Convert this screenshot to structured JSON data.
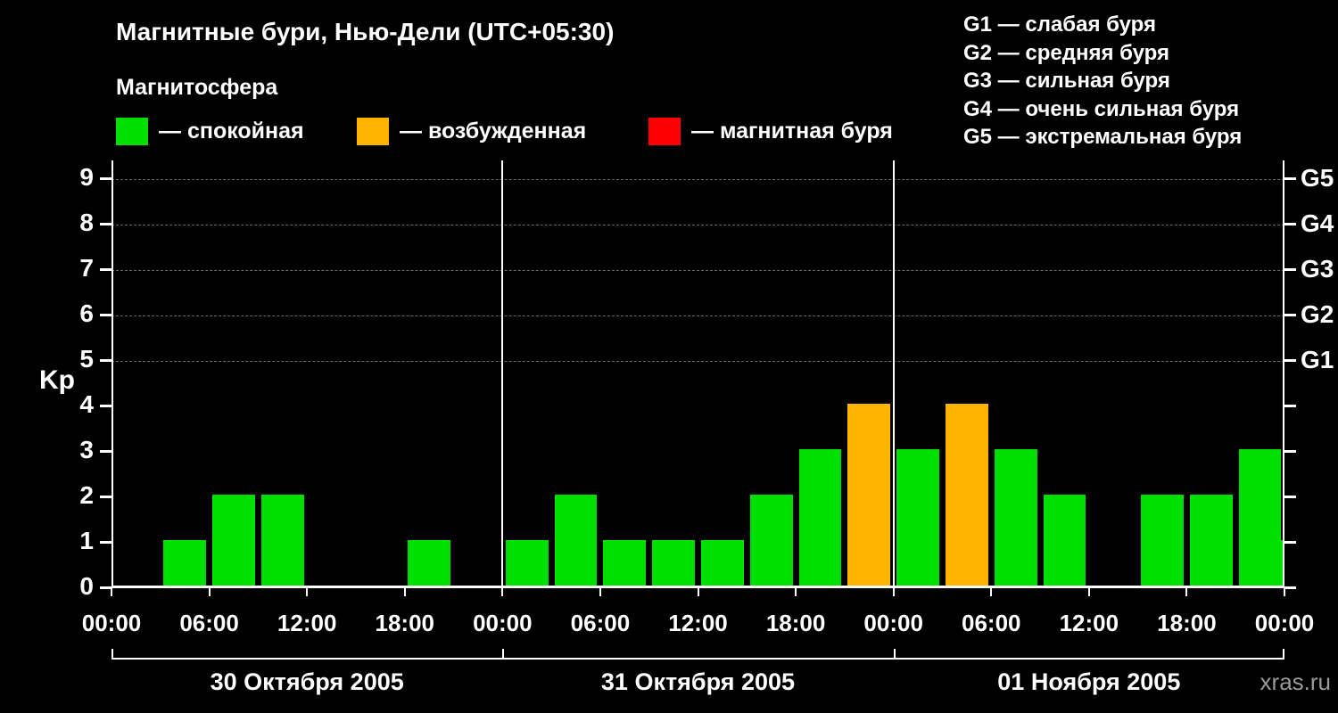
{
  "header": {
    "title": "Магнитные бури, Нью-Дели (UTC+05:30)",
    "subtitle": "Магнитосфера"
  },
  "legend": {
    "items": [
      {
        "name": "quiet",
        "label": "— спокойная",
        "color": "#00e000"
      },
      {
        "name": "excited",
        "label": "— возбужденная",
        "color": "#ffb400"
      },
      {
        "name": "storm",
        "label": "— магнитная буря",
        "color": "#ff0000"
      }
    ]
  },
  "storm_scale": {
    "lines": [
      "G1 — слабая буря",
      "G2 — средняя буря",
      "G3 — сильная буря",
      "G4 — очень сильная буря",
      "G5 — экстремальная буря"
    ]
  },
  "watermark": "xras.ru",
  "chart_data": {
    "type": "bar",
    "title": "Магнитные бури, Нью-Дели (UTC+05:30)",
    "ylabel": "Kp",
    "ylim": [
      0,
      9
    ],
    "yticks": [
      0,
      1,
      2,
      3,
      4,
      5,
      6,
      7,
      8,
      9
    ],
    "gridlines_at": [
      5,
      6,
      7,
      8,
      9
    ],
    "right_axis_labels": [
      {
        "kp": 5,
        "label": "G1"
      },
      {
        "kp": 6,
        "label": "G2"
      },
      {
        "kp": 7,
        "label": "G3"
      },
      {
        "kp": 8,
        "label": "G4"
      },
      {
        "kp": 9,
        "label": "G5"
      }
    ],
    "x_time_ticks": [
      "00:00",
      "06:00",
      "12:00",
      "18:00"
    ],
    "x_end_tick": "00:00",
    "interval_hours": 3,
    "days": [
      {
        "label": "30 Октября 2005",
        "kp_values": [
          0,
          1,
          2,
          2,
          0,
          0,
          1,
          0
        ]
      },
      {
        "label": "31 Октября 2005",
        "kp_values": [
          1,
          2,
          1,
          1,
          1,
          2,
          3,
          4
        ]
      },
      {
        "label": "01 Ноября 2005",
        "kp_values": [
          3,
          4,
          3,
          2,
          0,
          2,
          2,
          3
        ]
      }
    ],
    "trailing_partial_kp": 1,
    "colors": {
      "quiet": "#00e000",
      "excited": "#ffb400",
      "storm": "#ff0000"
    },
    "color_thresholds": {
      "quiet_max": 3,
      "excited": 4,
      "storm_min": 5
    }
  }
}
